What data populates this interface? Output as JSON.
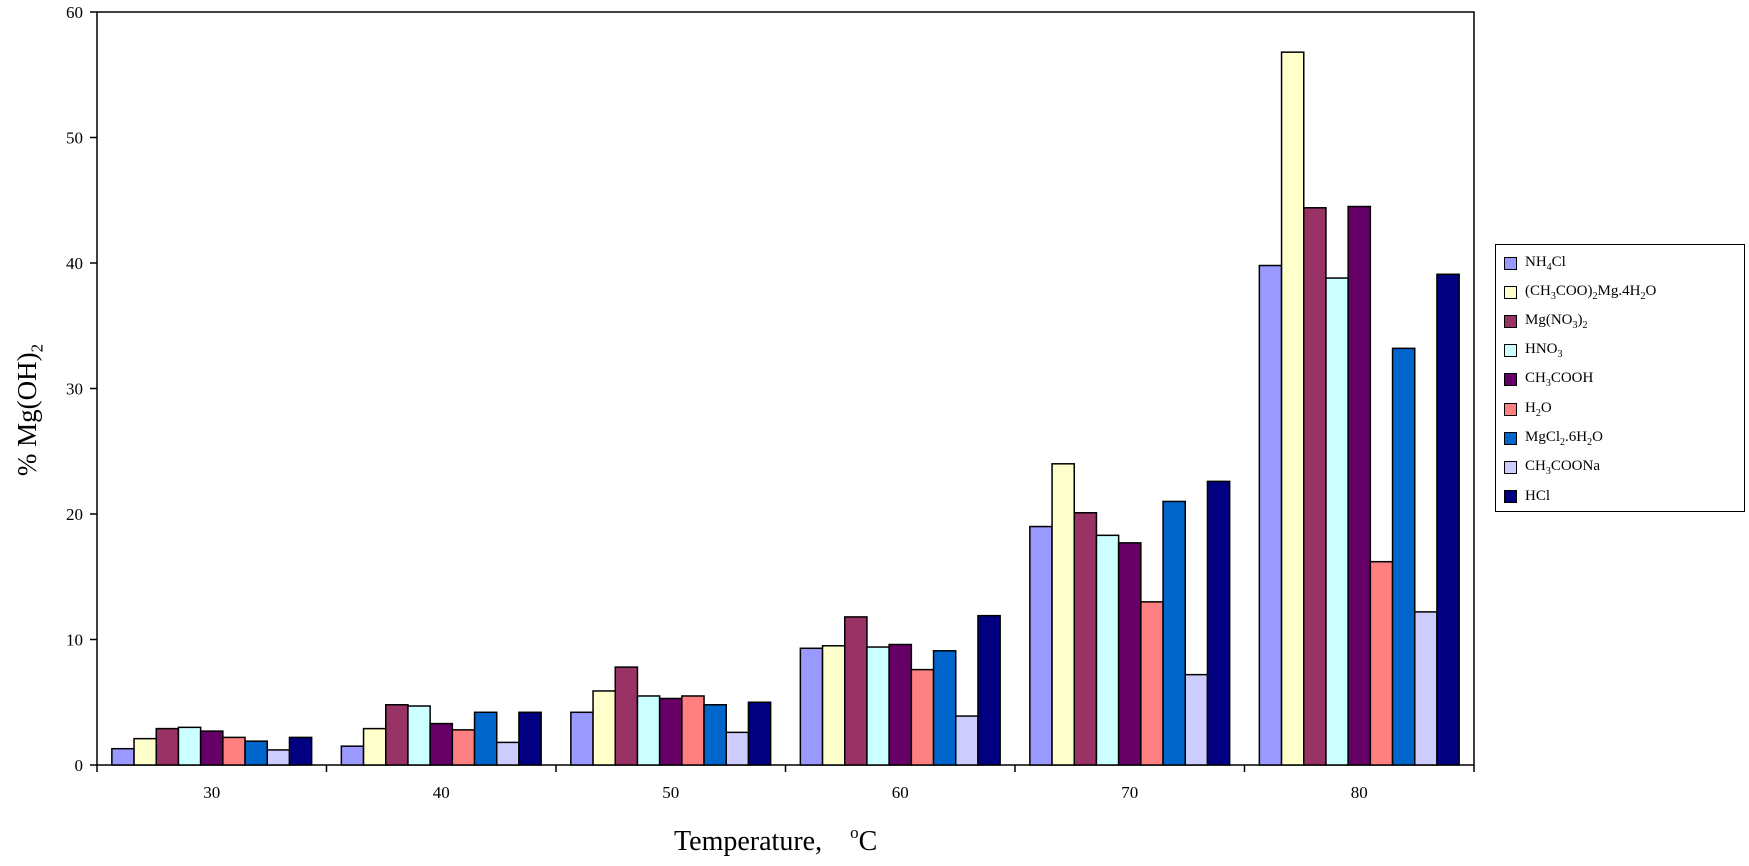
{
  "chart_data": {
    "type": "bar",
    "title": "",
    "xlabel_main": "Temperature,",
    "xlabel_sup": "o",
    "xlabel_unit": "C",
    "ylabel": "% Mg(OH)",
    "ylabel_sub": "2",
    "ylim": [
      0,
      60
    ],
    "yticks": [
      0,
      10,
      20,
      30,
      40,
      50,
      60
    ],
    "categories": [
      "30",
      "40",
      "50",
      "60",
      "70",
      "80"
    ],
    "grid": false,
    "legend_position": "right",
    "series": [
      {
        "name": "NH4Cl",
        "label_parts": [
          [
            "NH",
            ""
          ],
          [
            "4",
            "sub"
          ],
          [
            "Cl",
            ""
          ]
        ],
        "color": "#9999ff",
        "values": [
          1.3,
          1.5,
          4.2,
          9.3,
          19.0,
          39.8
        ]
      },
      {
        "name": "(CH3COO)2Mg.4H2O",
        "label_parts": [
          [
            "(CH",
            ""
          ],
          [
            "3",
            "sub"
          ],
          [
            "COO)",
            ""
          ],
          [
            "2",
            "sub"
          ],
          [
            "Mg.4H",
            ""
          ],
          [
            "2",
            "sub"
          ],
          [
            "O",
            ""
          ]
        ],
        "color": "#ffffcc",
        "values": [
          2.1,
          2.9,
          5.9,
          9.5,
          24.0,
          56.8
        ]
      },
      {
        "name": "Mg(NO3)2",
        "label_parts": [
          [
            "Mg(NO",
            ""
          ],
          [
            "3",
            "sub"
          ],
          [
            ")",
            ""
          ],
          [
            "2",
            "sub"
          ]
        ],
        "color": "#993366",
        "values": [
          2.9,
          4.8,
          7.8,
          11.8,
          20.1,
          44.4
        ]
      },
      {
        "name": "HNO3",
        "label_parts": [
          [
            "HNO",
            ""
          ],
          [
            "3",
            "sub"
          ]
        ],
        "color": "#ccffff",
        "values": [
          3.0,
          4.7,
          5.5,
          9.4,
          18.3,
          38.8
        ]
      },
      {
        "name": "CH3COOH",
        "label_parts": [
          [
            "CH",
            ""
          ],
          [
            "3",
            "sub"
          ],
          [
            "COOH",
            ""
          ]
        ],
        "color": "#660066",
        "values": [
          2.7,
          3.3,
          5.3,
          9.6,
          17.7,
          44.5
        ]
      },
      {
        "name": "H2O",
        "label_parts": [
          [
            "H",
            ""
          ],
          [
            "2",
            "sub"
          ],
          [
            "O",
            ""
          ]
        ],
        "color": "#ff8080",
        "values": [
          2.2,
          2.8,
          5.5,
          7.6,
          13.0,
          16.2
        ]
      },
      {
        "name": "MgCl2.6H2O",
        "label_parts": [
          [
            "MgCl",
            ""
          ],
          [
            "2",
            "sub"
          ],
          [
            ".6H",
            ""
          ],
          [
            "2",
            "sub"
          ],
          [
            "O",
            ""
          ]
        ],
        "color": "#0066cc",
        "values": [
          1.9,
          4.2,
          4.8,
          9.1,
          21.0,
          33.2
        ]
      },
      {
        "name": "CH3COONa",
        "label_parts": [
          [
            "CH",
            ""
          ],
          [
            "3",
            "sub"
          ],
          [
            "COONa",
            ""
          ]
        ],
        "color": "#ccccff",
        "values": [
          1.2,
          1.8,
          2.6,
          3.9,
          7.2,
          12.2
        ]
      },
      {
        "name": "HCl",
        "label_parts": [
          [
            "HCl",
            ""
          ]
        ],
        "color": "#000080",
        "values": [
          2.2,
          4.2,
          5.0,
          11.9,
          22.6,
          39.1
        ]
      }
    ]
  }
}
